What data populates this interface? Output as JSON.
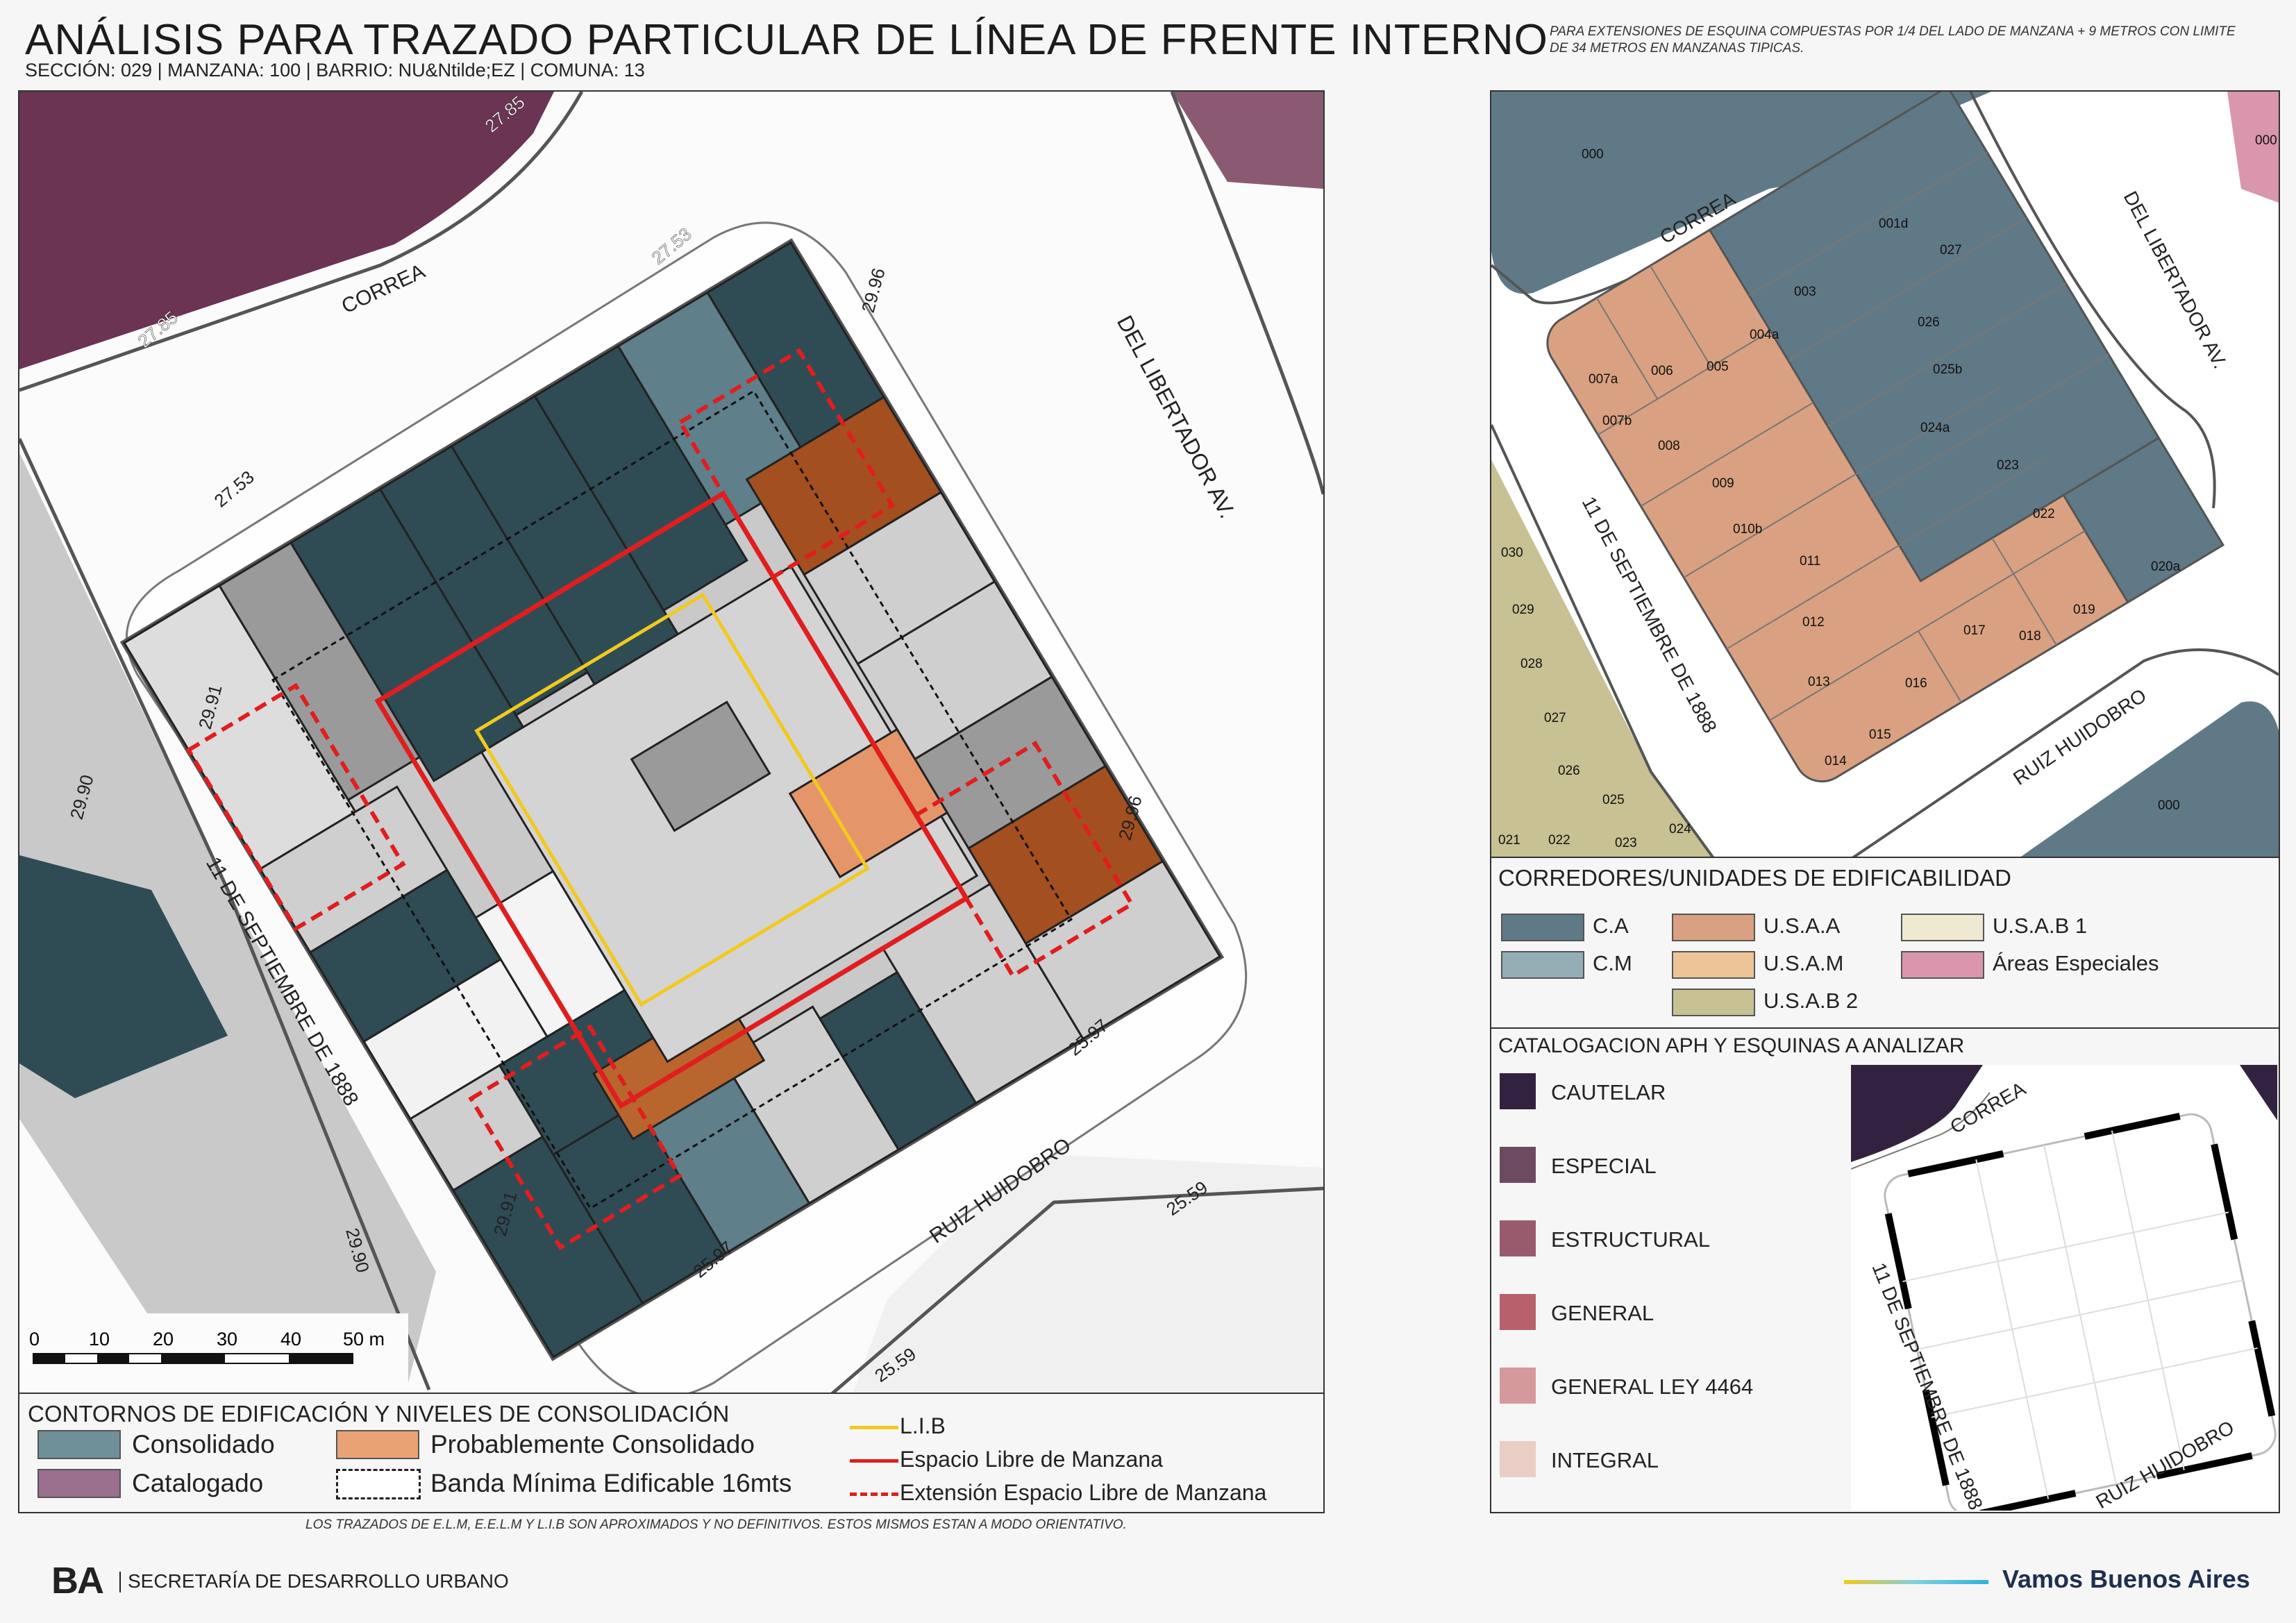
{
  "header": {
    "title": "ANÁLISIS PARA TRAZADO PARTICULAR DE LÍNEA DE FRENTE INTERNO",
    "subtitle": "SECCIÓN: 029 |  MANZANA: 100 | BARRIO: NU&Ntilde;EZ | COMUNA: 13",
    "note": "PARA EXTENSIONES DE ESQUINA COMPUESTAS POR 1/4 DEL LADO DE MANZANA + 9 METROS CON LIMITE DE 34 METROS EN MANZANAS TIPICAS."
  },
  "main_map": {
    "streets": {
      "top": "CORREA",
      "right": "DEL LIBERTADOR AV.",
      "left": "11 DE SEPTIEMBRE DE 1888",
      "bottom": "RUIZ HUIDOBRO"
    },
    "heights": [
      "27.85",
      "27.85",
      "27.53",
      "27.53",
      "29.96",
      "29.96",
      "29.91",
      "29.91",
      "25.97",
      "25.97",
      "29.90",
      "29.90",
      "25.59",
      "25.59"
    ],
    "scale": {
      "ticks": [
        "0",
        "10",
        "20",
        "30",
        "40",
        "50 m"
      ]
    }
  },
  "parcel_map": {
    "streets": {
      "top": "CORREA",
      "right": "DEL LIBERTADOR AV.",
      "left": "11 DE SEPTIEMBRE DE 1888",
      "bottom": "RUIZ HUIDOBRO"
    },
    "parcels": [
      "000",
      "000",
      "000",
      "001d",
      "027",
      "003",
      "004a",
      "005",
      "006",
      "007a",
      "007b",
      "008",
      "009",
      "010b",
      "011",
      "012",
      "013",
      "014",
      "015",
      "016",
      "017",
      "018",
      "019",
      "020a",
      "022",
      "023",
      "024a",
      "025b",
      "026",
      "030",
      "029",
      "028",
      "027",
      "026",
      "025",
      "024",
      "023",
      "022",
      "021"
    ]
  },
  "legend_consolidacion": {
    "title": "CONTORNOS DE EDIFICACIÓN Y NIVELES DE CONSOLIDACIÓN",
    "items": [
      {
        "label": "Consolidado",
        "color": "#6f8f99"
      },
      {
        "label": "Probablemente Consolidado",
        "color": "#e9a274"
      },
      {
        "label": "Catalogado",
        "color": "#9b6f8e"
      },
      {
        "label": "Banda Mínima Edificable 16mts",
        "color": "#ffffff"
      }
    ],
    "lines": [
      {
        "label": "L.I.B",
        "color": "#f2c91d"
      },
      {
        "label": "Espacio Libre de Manzana",
        "color": "#e01e1e"
      },
      {
        "label": "Extensión Espacio Libre de Manzana",
        "color": "#e01e1e"
      }
    ]
  },
  "legend_corredores": {
    "title": "CORREDORES/UNIDADES DE EDIFICABILIDAD",
    "items": [
      {
        "label": "C.A",
        "color": "#607986"
      },
      {
        "label": "U.S.A.A",
        "color": "#d9a181"
      },
      {
        "label": "U.S.A.B 1",
        "color": "#efe9d2"
      },
      {
        "label": "C.M",
        "color": "#94aeb6"
      },
      {
        "label": "U.S.A.M",
        "color": "#ecc497"
      },
      {
        "label": "Áreas Especiales",
        "color": "#d996ac"
      },
      {
        "label": "U.S.A.B 2",
        "color": "#c7c193"
      }
    ]
  },
  "legend_catalogacion": {
    "title": "CATALOGACION APH Y ESQUINAS A ANALIZAR",
    "items": [
      {
        "label": "CAUTELAR",
        "color": "#33223f"
      },
      {
        "label": "ESPECIAL",
        "color": "#6e4a60"
      },
      {
        "label": "ESTRUCTURAL",
        "color": "#985a6c"
      },
      {
        "label": "GENERAL",
        "color": "#b9606d"
      },
      {
        "label": "GENERAL LEY 4464",
        "color": "#d5999b"
      },
      {
        "label": "INTEGRAL",
        "color": "#eacdc5"
      }
    ],
    "inset_streets": {
      "top": "CORREA",
      "left": "11 DE SEPTIEMBRE DE 1888",
      "bottom": "RUIZ HUIDOBRO"
    }
  },
  "footer": {
    "disclaimer": "LOS TRAZADOS DE E.L.M, E.E.L.M Y L.I.B SON APROXIMADOS Y NO DEFINITIVOS. ESTOS MISMOS ESTAN A MODO ORIENTATIVO.",
    "org": "SECRETARÍA DE DESARROLLO URBANO",
    "brand": "Vamos Buenos Aires",
    "logo": "BA"
  }
}
